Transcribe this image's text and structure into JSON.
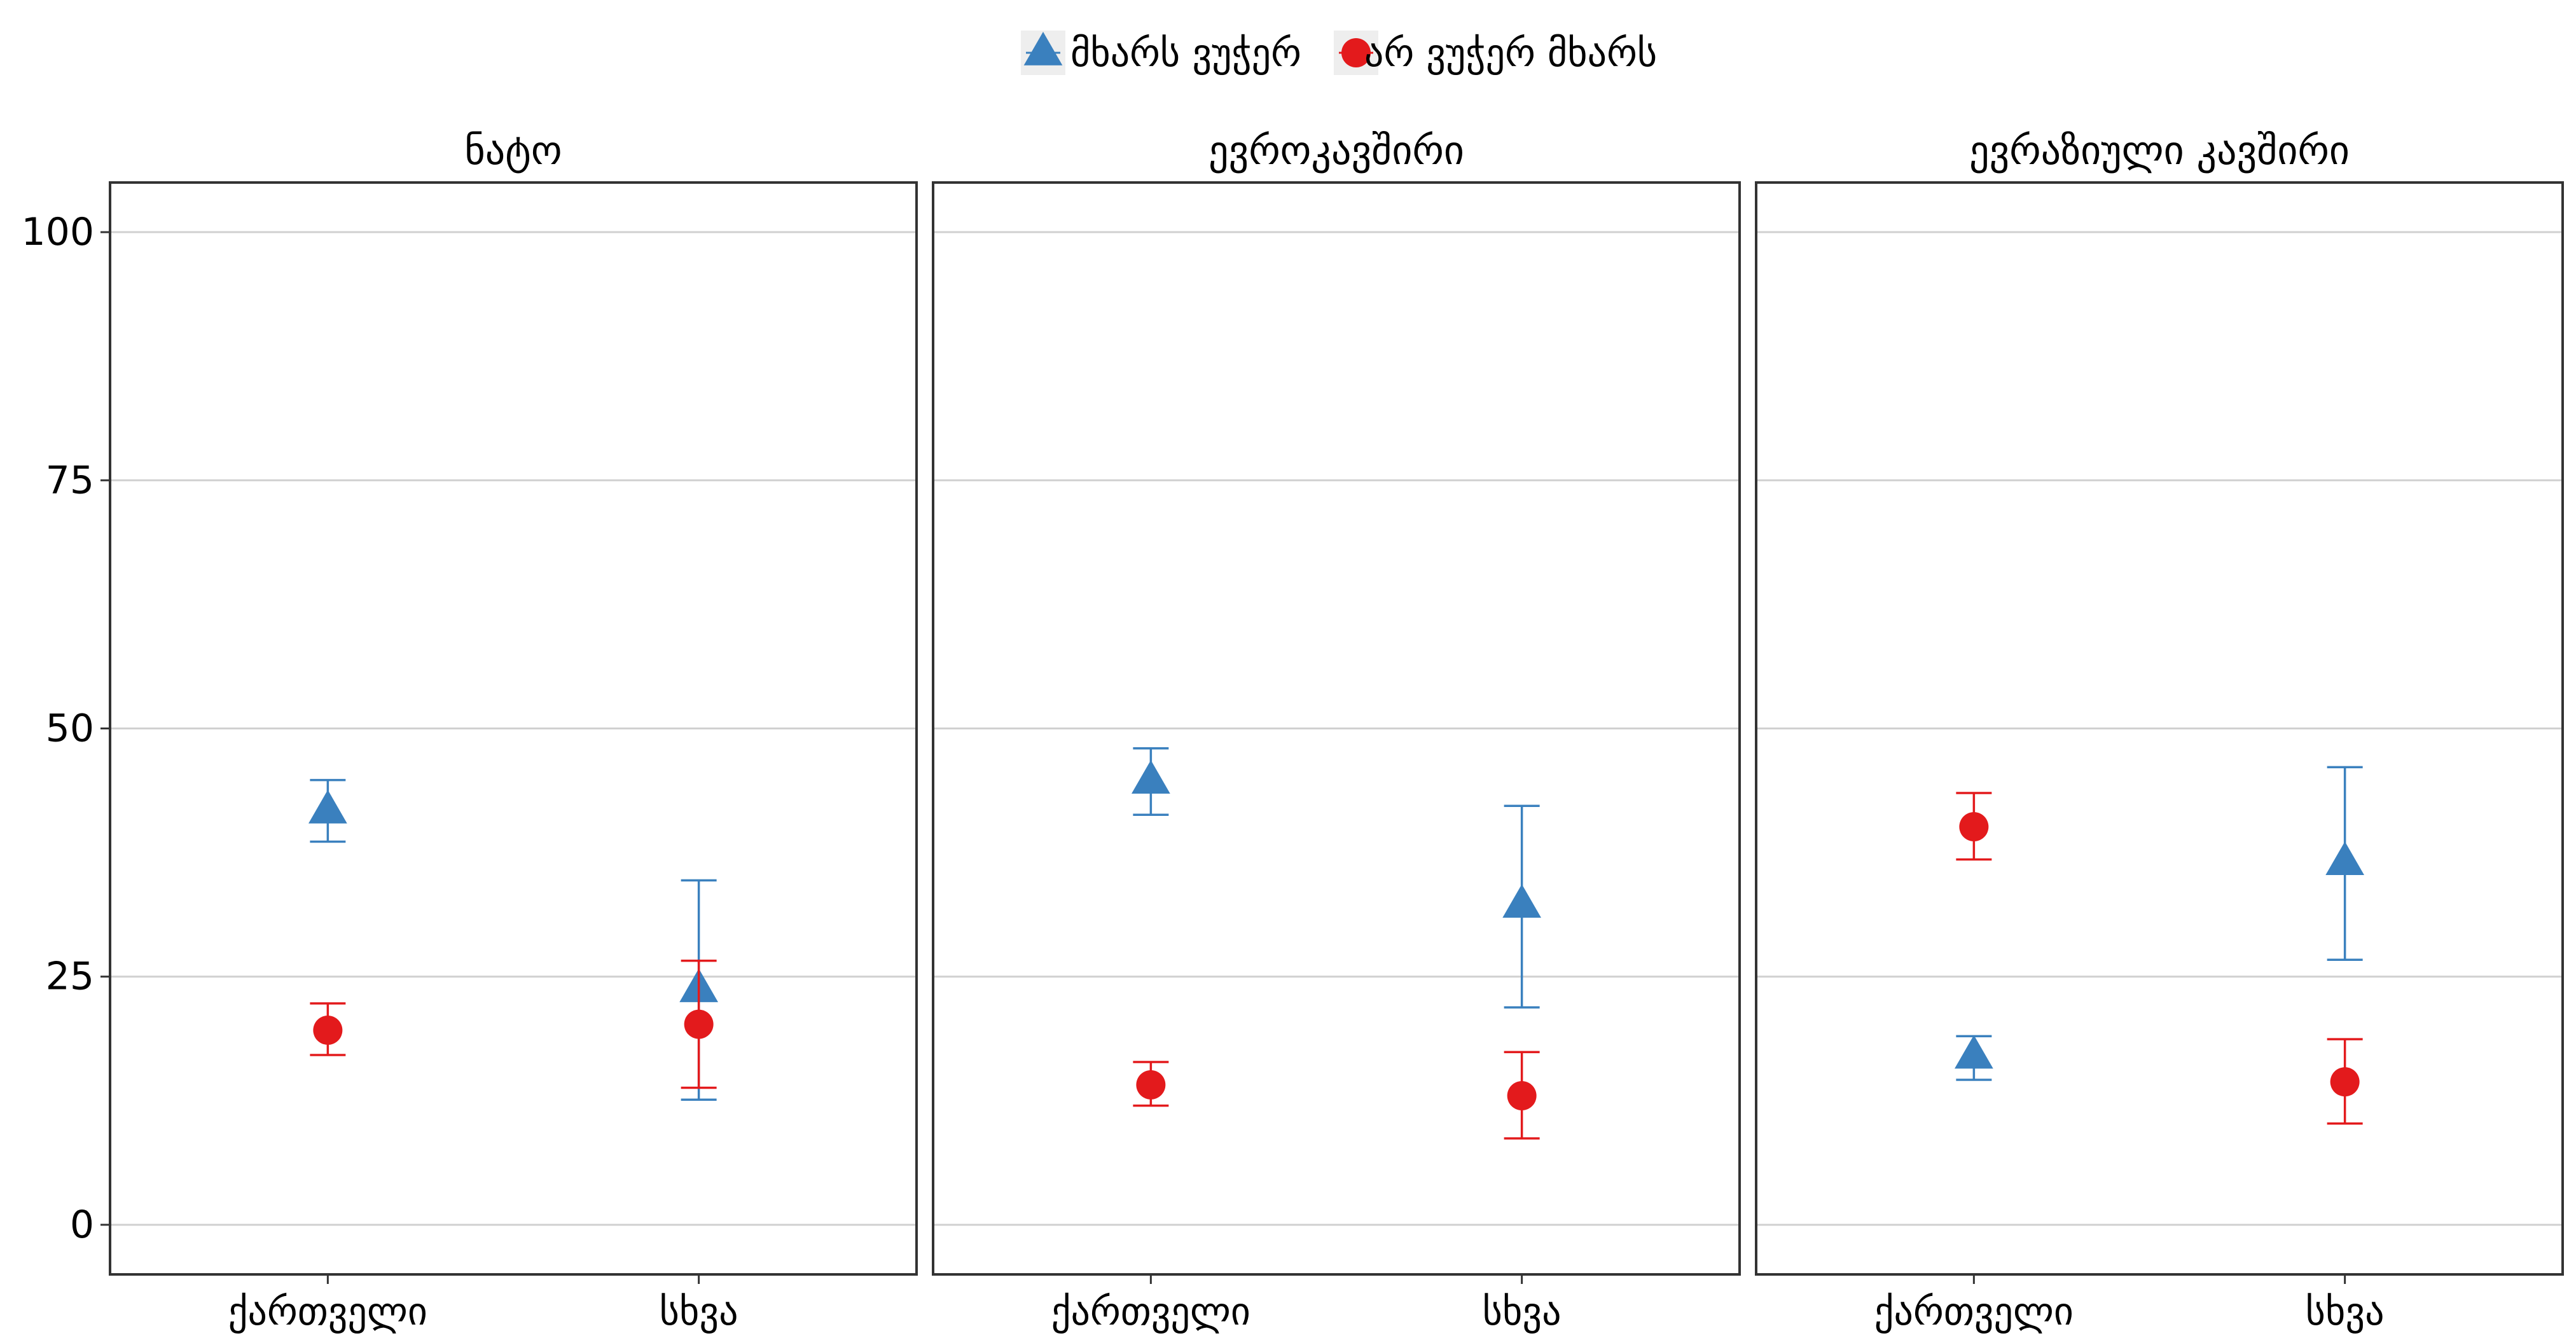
{
  "chart_data": {
    "type": "scatter",
    "title": "",
    "xlabel": "",
    "ylabel": "",
    "ylim": [
      -5,
      105
    ],
    "yticks": [
      0,
      25,
      50,
      75,
      100
    ],
    "grid": true,
    "legend_position": "top",
    "categories": [
      "ქართველი",
      "სხვა"
    ],
    "series": [
      {
        "name": "მხარს ვუჭერ",
        "color": "#3A80BE",
        "marker": "triangle",
        "panels": [
          {
            "values": [
              41.7,
              23.7
            ],
            "lower": [
              38.6,
              12.6
            ],
            "upper": [
              44.8,
              34.7
            ]
          },
          {
            "values": [
              44.7,
              32.2
            ],
            "lower": [
              41.3,
              21.9
            ],
            "upper": [
              48.0,
              42.2
            ]
          },
          {
            "values": [
              17.0,
              36.5
            ],
            "lower": [
              14.6,
              26.7
            ],
            "upper": [
              19.0,
              46.1
            ]
          }
        ]
      },
      {
        "name": "არ ვუჭერ მხარს",
        "color": "#E31A1C",
        "marker": "circle",
        "panels": [
          {
            "values": [
              19.6,
              20.2
            ],
            "lower": [
              17.1,
              13.8
            ],
            "upper": [
              22.3,
              26.6
            ]
          },
          {
            "values": [
              14.1,
              13.0
            ],
            "lower": [
              12.0,
              8.7
            ],
            "upper": [
              16.4,
              17.4
            ]
          },
          {
            "values": [
              40.1,
              14.4
            ],
            "lower": [
              36.8,
              10.2
            ],
            "upper": [
              43.5,
              18.7
            ]
          }
        ]
      }
    ],
    "panels": [
      {
        "title": "ნატო"
      },
      {
        "title": "ევროკავშირი"
      },
      {
        "title": "ევრაზიული კავშირი"
      }
    ]
  }
}
